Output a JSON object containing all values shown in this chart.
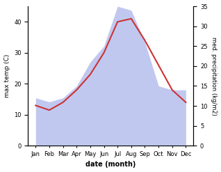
{
  "months": [
    "Jan",
    "Feb",
    "Mar",
    "Apr",
    "May",
    "Jun",
    "Jul",
    "Aug",
    "Sep",
    "Oct",
    "Nov",
    "Dec"
  ],
  "temp": [
    13,
    11.5,
    14,
    18,
    23,
    30,
    40,
    41,
    34,
    26,
    18,
    14
  ],
  "precip": [
    12,
    11,
    12,
    15,
    21,
    25,
    35,
    34,
    26,
    15,
    14,
    14
  ],
  "temp_color": "#cc3333",
  "precip_color": "#c0c8f0",
  "ylabel_left": "max temp (C)",
  "ylabel_right": "med. precipitation (kg/m2)",
  "xlabel": "date (month)",
  "ylim_left": [
    0,
    45
  ],
  "ylim_right": [
    0,
    35
  ],
  "yticks_left": [
    0,
    10,
    20,
    30,
    40
  ],
  "yticks_right": [
    0,
    5,
    10,
    15,
    20,
    25,
    30,
    35
  ],
  "background": "#ffffff",
  "plot_bg": "#ffffff"
}
